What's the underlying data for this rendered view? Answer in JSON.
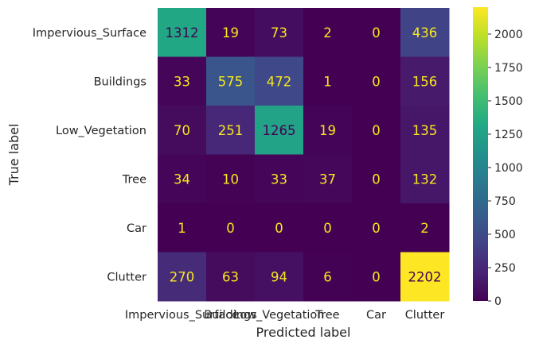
{
  "chart_data": {
    "type": "heatmap",
    "title": "",
    "xlabel": "Predicted label",
    "ylabel": "True label",
    "x_categories": [
      "Impervious_Surface",
      "Buildings",
      "Low_Vegetation",
      "Tree",
      "Car",
      "Clutter"
    ],
    "y_categories": [
      "Impervious_Surface",
      "Buildings",
      "Low_Vegetation",
      "Tree",
      "Car",
      "Clutter"
    ],
    "values": [
      [
        1312,
        19,
        73,
        2,
        0,
        436
      ],
      [
        33,
        575,
        472,
        1,
        0,
        156
      ],
      [
        70,
        251,
        1265,
        19,
        0,
        135
      ],
      [
        34,
        10,
        33,
        37,
        0,
        132
      ],
      [
        1,
        0,
        0,
        0,
        0,
        2
      ],
      [
        270,
        63,
        94,
        6,
        0,
        2202
      ]
    ],
    "colormap": "viridis",
    "vmin": 0,
    "vmax": 2202,
    "colorbar_ticks": [
      0,
      250,
      500,
      750,
      1000,
      1250,
      1500,
      1750,
      2000
    ],
    "grid": false
  },
  "colors": {
    "text_light": "#f5e81c",
    "text_dark": "#440154"
  }
}
